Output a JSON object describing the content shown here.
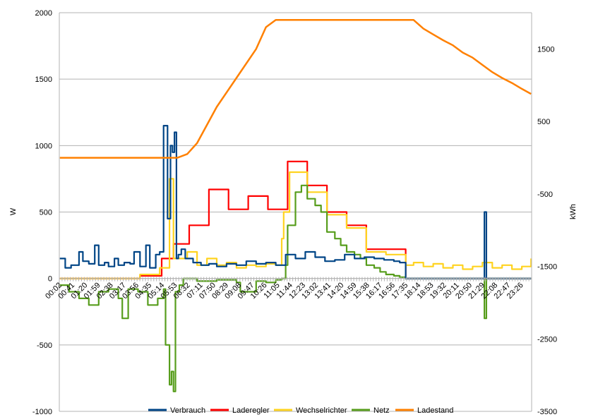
{
  "chart_data": {
    "type": "line",
    "title": "",
    "ylabel": "W",
    "y2label": "kWh",
    "ylim": [
      -1000,
      2000
    ],
    "y_ticks": [
      "2000",
      "1500",
      "1000",
      "500",
      "0",
      "-500",
      "-1000"
    ],
    "y2lim": [
      -3500,
      2000
    ],
    "y2_ticks": [
      "1500",
      "500",
      "-500",
      "-1500",
      "-2500",
      "-3500"
    ],
    "x_tick_labels": [
      "00:02",
      "00:41",
      "01:20",
      "01:59",
      "02:38",
      "03:17",
      "03:56",
      "04:35",
      "05:14",
      "05:53",
      "06:32",
      "07:11",
      "07:50",
      "08:29",
      "09:08",
      "09:47",
      "10:26",
      "11:05",
      "11:44",
      "12:23",
      "13:02",
      "13:41",
      "14:20",
      "14:59",
      "15:38",
      "16:17",
      "16:56",
      "17:35",
      "18:14",
      "18:53",
      "19:32",
      "20:11",
      "20:50",
      "21:29",
      "22:08",
      "22:47",
      "23:26"
    ],
    "grid": true,
    "legend_position": "bottom",
    "colors": {
      "Verbrauch": "#004586",
      "Laderegler": "#ff0000",
      "Wechselrichter": "#ffd320",
      "Netz": "#579d1c",
      "Ladestand": "#ff8000"
    },
    "series": [
      {
        "name": "Verbrauch",
        "axis": "left",
        "x_hours": [
          0.03,
          0.3,
          0.6,
          1.0,
          1.2,
          1.5,
          1.8,
          2.0,
          2.3,
          2.5,
          2.8,
          3.0,
          3.3,
          3.6,
          3.8,
          4.1,
          4.4,
          4.6,
          4.9,
          5.1,
          5.3,
          5.5,
          5.65,
          5.75,
          5.85,
          5.95,
          6.05,
          6.2,
          6.4,
          6.8,
          7.2,
          7.6,
          8.0,
          8.5,
          9.0,
          9.5,
          10.0,
          10.5,
          11.0,
          11.5,
          12.0,
          12.5,
          13.0,
          13.5,
          14.0,
          14.5,
          15.0,
          15.5,
          16.0,
          16.5,
          17.0,
          17.3,
          17.6,
          18.0,
          18.5,
          19.0,
          19.5,
          20.0,
          20.5,
          21.0,
          21.5,
          21.6,
          21.7,
          22.0,
          22.5,
          23.0,
          23.5,
          23.97
        ],
        "values": [
          150,
          80,
          100,
          200,
          130,
          110,
          250,
          100,
          120,
          90,
          150,
          100,
          120,
          110,
          200,
          90,
          250,
          80,
          180,
          200,
          1150,
          450,
          1000,
          950,
          1100,
          150,
          180,
          220,
          150,
          120,
          100,
          110,
          90,
          110,
          100,
          130,
          110,
          120,
          100,
          180,
          150,
          200,
          160,
          130,
          140,
          180,
          150,
          160,
          150,
          140,
          130,
          120,
          0,
          0,
          0,
          0,
          0,
          0,
          0,
          0,
          0,
          500,
          0,
          0,
          0,
          0,
          0,
          0
        ]
      },
      {
        "name": "Laderegler",
        "axis": "left",
        "x_hours": [
          0.03,
          4.0,
          4.1,
          5.0,
          5.2,
          5.7,
          5.8,
          6.5,
          6.6,
          7.5,
          7.6,
          8.5,
          8.6,
          9.5,
          9.6,
          10.5,
          10.6,
          11.5,
          11.6,
          12.5,
          12.6,
          13.5,
          13.6,
          14.5,
          14.6,
          15.5,
          15.6,
          16.5,
          16.6,
          17.5,
          17.6,
          23.97
        ],
        "values": [
          0,
          0,
          20,
          20,
          150,
          150,
          260,
          260,
          400,
          400,
          670,
          670,
          520,
          520,
          620,
          620,
          520,
          520,
          880,
          880,
          700,
          700,
          500,
          500,
          400,
          400,
          220,
          220,
          220,
          220,
          0,
          0
        ]
      },
      {
        "name": "Wechselrichter",
        "axis": "left",
        "x_hours": [
          0.03,
          4.0,
          4.1,
          5.0,
          5.1,
          5.5,
          5.6,
          5.8,
          6.5,
          7.0,
          7.5,
          8.0,
          8.5,
          9.0,
          9.5,
          10.0,
          10.5,
          11.0,
          11.3,
          11.4,
          11.6,
          11.7,
          12.5,
          12.6,
          13.5,
          13.6,
          14.5,
          14.6,
          15.5,
          15.6,
          16.5,
          16.6,
          17.5,
          17.6,
          18.0,
          18.5,
          19.0,
          19.5,
          20.0,
          20.5,
          21.0,
          21.5,
          22.0,
          22.5,
          23.0,
          23.5,
          23.97
        ],
        "values": [
          0,
          0,
          30,
          30,
          80,
          80,
          750,
          150,
          200,
          100,
          150,
          100,
          120,
          80,
          100,
          90,
          110,
          100,
          300,
          500,
          500,
          800,
          800,
          650,
          650,
          480,
          480,
          380,
          380,
          200,
          200,
          180,
          180,
          100,
          120,
          90,
          110,
          80,
          100,
          70,
          90,
          120,
          80,
          100,
          70,
          90,
          150
        ]
      },
      {
        "name": "Netz",
        "axis": "left",
        "x_hours": [
          0.03,
          0.5,
          1.0,
          1.5,
          2.0,
          2.5,
          3.0,
          3.2,
          3.5,
          4.0,
          4.5,
          5.0,
          5.3,
          5.4,
          5.6,
          5.7,
          5.8,
          5.9,
          6.1,
          6.3,
          7.0,
          8.0,
          9.0,
          9.2,
          10.0,
          10.5,
          11.0,
          11.3,
          11.5,
          11.6,
          12.0,
          12.3,
          12.6,
          13.0,
          13.3,
          13.6,
          14.0,
          14.3,
          14.6,
          15.0,
          15.3,
          15.6,
          16.0,
          16.3,
          16.6,
          17.0,
          17.3,
          17.6,
          18.0,
          19.0,
          20.0,
          21.0,
          21.6,
          21.7,
          22.0,
          23.0,
          23.97
        ],
        "values": [
          -50,
          -100,
          -150,
          -200,
          -100,
          -80,
          -150,
          -300,
          -80,
          -100,
          -200,
          -150,
          -80,
          -500,
          -800,
          -700,
          -850,
          -100,
          -50,
          0,
          -20,
          -10,
          -30,
          -100,
          -20,
          -30,
          -10,
          0,
          100,
          400,
          650,
          700,
          600,
          550,
          500,
          350,
          300,
          250,
          200,
          180,
          150,
          100,
          80,
          50,
          30,
          20,
          10,
          0,
          0,
          0,
          0,
          0,
          -300,
          0,
          0,
          0,
          0
        ]
      },
      {
        "name": "Ladestand",
        "axis": "right",
        "x_hours": [
          0.03,
          2.0,
          4.0,
          6.0,
          6.5,
          7.0,
          8.0,
          9.0,
          10.0,
          10.5,
          11.0,
          11.5,
          12.0,
          13.0,
          14.0,
          15.0,
          16.0,
          17.0,
          18.0,
          18.5,
          19.0,
          19.5,
          20.0,
          20.5,
          21.0,
          21.5,
          22.0,
          22.5,
          23.0,
          23.5,
          23.97
        ],
        "values": [
          -1,
          -1,
          -1,
          -1,
          50,
          200,
          700,
          1100,
          1500,
          1800,
          1900,
          1900,
          1900,
          1900,
          1900,
          1900,
          1900,
          1900,
          1900,
          1780,
          1700,
          1620,
          1550,
          1450,
          1380,
          1280,
          1180,
          1100,
          1030,
          950,
          880
        ]
      }
    ]
  }
}
